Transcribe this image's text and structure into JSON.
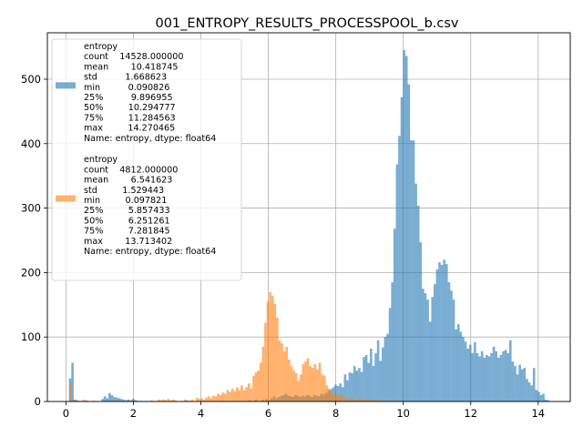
{
  "chart_data": {
    "type": "histogram",
    "title": "001_ENTROPY_RESULTS_PROCESSPOOL_b.csv",
    "xlabel": "",
    "ylabel": "",
    "xlim": [
      -0.55,
      14.95
    ],
    "ylim": [
      0,
      572
    ],
    "xticks": [
      0,
      2,
      4,
      6,
      8,
      10,
      12,
      14
    ],
    "yticks": [
      0,
      100,
      200,
      300,
      400,
      500
    ],
    "grid": true,
    "legend_position": "upper-left",
    "bin_width": 0.071,
    "series": [
      {
        "color": "#1f77b4",
        "alpha": 0.6,
        "legend_lines": [
          "entropy",
          "count    14528.000000",
          "mean        10.418745",
          "std          1.668623",
          "min          0.090826",
          "25%          9.896955",
          "50%         10.294777",
          "75%         11.284563",
          "max         14.270465",
          "Name: entropy, dtype: float64"
        ],
        "bins": [
          [
            0.09,
            36
          ],
          [
            0.16,
            60
          ],
          [
            0.23,
            3
          ],
          [
            0.3,
            2
          ],
          [
            0.38,
            1
          ],
          [
            0.45,
            1
          ],
          [
            0.6,
            1
          ],
          [
            0.8,
            1
          ],
          [
            1.05,
            4
          ],
          [
            1.12,
            8
          ],
          [
            1.19,
            5
          ],
          [
            1.26,
            13
          ],
          [
            1.33,
            10
          ],
          [
            1.4,
            7
          ],
          [
            1.47,
            6
          ],
          [
            1.54,
            5
          ],
          [
            1.61,
            4
          ],
          [
            1.68,
            3
          ],
          [
            1.75,
            2
          ],
          [
            1.82,
            3
          ],
          [
            1.89,
            2
          ],
          [
            1.96,
            4
          ],
          [
            2.03,
            2
          ],
          [
            2.1,
            1
          ],
          [
            2.2,
            1
          ],
          [
            2.35,
            1
          ],
          [
            4.6,
            1
          ],
          [
            5.4,
            2
          ],
          [
            5.6,
            3
          ],
          [
            5.8,
            3
          ],
          [
            5.9,
            4
          ],
          [
            6.0,
            3
          ],
          [
            6.07,
            5
          ],
          [
            6.14,
            8
          ],
          [
            6.21,
            5
          ],
          [
            6.28,
            7
          ],
          [
            6.35,
            9
          ],
          [
            6.42,
            10
          ],
          [
            6.49,
            12
          ],
          [
            6.56,
            9
          ],
          [
            6.63,
            8
          ],
          [
            6.7,
            7
          ],
          [
            6.77,
            10
          ],
          [
            6.84,
            9
          ],
          [
            6.91,
            7
          ],
          [
            6.98,
            9
          ],
          [
            7.05,
            8
          ],
          [
            7.12,
            10
          ],
          [
            7.19,
            9
          ],
          [
            7.26,
            7
          ],
          [
            7.33,
            10
          ],
          [
            7.4,
            9
          ],
          [
            7.47,
            8
          ],
          [
            7.54,
            12
          ],
          [
            7.61,
            11
          ],
          [
            7.68,
            13
          ],
          [
            7.75,
            17
          ],
          [
            7.82,
            19
          ],
          [
            7.89,
            22
          ],
          [
            7.96,
            26
          ],
          [
            8.03,
            24
          ],
          [
            8.1,
            28
          ],
          [
            8.17,
            22
          ],
          [
            8.24,
            42
          ],
          [
            8.31,
            33
          ],
          [
            8.38,
            45
          ],
          [
            8.45,
            44
          ],
          [
            8.52,
            55
          ],
          [
            8.59,
            48
          ],
          [
            8.66,
            52
          ],
          [
            8.73,
            46
          ],
          [
            8.8,
            69
          ],
          [
            8.87,
            72
          ],
          [
            8.94,
            60
          ],
          [
            9.01,
            82
          ],
          [
            9.08,
            55
          ],
          [
            9.15,
            75
          ],
          [
            9.22,
            95
          ],
          [
            9.29,
            63
          ],
          [
            9.36,
            84
          ],
          [
            9.43,
            100
          ],
          [
            9.5,
            105
          ],
          [
            9.57,
            145
          ],
          [
            9.64,
            185
          ],
          [
            9.71,
            268
          ],
          [
            9.78,
            368
          ],
          [
            9.85,
            412
          ],
          [
            9.92,
            472
          ],
          [
            9.99,
            545
          ],
          [
            10.06,
            536
          ],
          [
            10.13,
            492
          ],
          [
            10.2,
            405
          ],
          [
            10.27,
            405
          ],
          [
            10.34,
            338
          ],
          [
            10.41,
            304
          ],
          [
            10.48,
            247
          ],
          [
            10.55,
            175
          ],
          [
            10.62,
            168
          ],
          [
            10.69,
            158
          ],
          [
            10.76,
            124
          ],
          [
            10.83,
            162
          ],
          [
            10.9,
            182
          ],
          [
            10.97,
            205
          ],
          [
            11.04,
            216
          ],
          [
            11.11,
            212
          ],
          [
            11.18,
            220
          ],
          [
            11.25,
            213
          ],
          [
            11.32,
            185
          ],
          [
            11.39,
            172
          ],
          [
            11.46,
            158
          ],
          [
            11.53,
            112
          ],
          [
            11.6,
            120
          ],
          [
            11.67,
            108
          ],
          [
            11.74,
            100
          ],
          [
            11.81,
            93
          ],
          [
            11.88,
            82
          ],
          [
            11.95,
            88
          ],
          [
            12.02,
            75
          ],
          [
            12.09,
            92
          ],
          [
            12.16,
            75
          ],
          [
            12.23,
            70
          ],
          [
            12.3,
            78
          ],
          [
            12.37,
            68
          ],
          [
            12.44,
            72
          ],
          [
            12.51,
            70
          ],
          [
            12.58,
            75
          ],
          [
            12.65,
            85
          ],
          [
            12.72,
            78
          ],
          [
            12.79,
            68
          ],
          [
            12.86,
            72
          ],
          [
            12.93,
            78
          ],
          [
            13.0,
            80
          ],
          [
            13.07,
            75
          ],
          [
            13.14,
            95
          ],
          [
            13.21,
            62
          ],
          [
            13.28,
            55
          ],
          [
            13.35,
            42
          ],
          [
            13.42,
            57
          ],
          [
            13.49,
            50
          ],
          [
            13.56,
            52
          ],
          [
            13.63,
            35
          ],
          [
            13.7,
            30
          ],
          [
            13.77,
            25
          ],
          [
            13.84,
            52
          ],
          [
            13.91,
            18
          ],
          [
            13.98,
            15
          ],
          [
            14.05,
            10
          ],
          [
            14.12,
            12
          ],
          [
            14.19,
            3
          ],
          [
            14.26,
            2
          ]
        ]
      },
      {
        "color": "#ff7f0e",
        "alpha": 0.6,
        "legend_lines": [
          "entropy",
          "count    4812.000000",
          "mean        6.541623",
          "std         1.529443",
          "min         0.097821",
          "25%         5.857433",
          "50%         6.251261",
          "75%         7.281845",
          "max        13.713402",
          "Name: entropy, dtype: float64"
        ],
        "bins": [
          [
            0.1,
            28
          ],
          [
            0.17,
            2
          ],
          [
            0.5,
            3
          ],
          [
            0.57,
            2
          ],
          [
            1.5,
            1
          ],
          [
            1.8,
            2
          ],
          [
            2.2,
            1
          ],
          [
            2.5,
            2
          ],
          [
            2.6,
            1
          ],
          [
            2.72,
            3
          ],
          [
            2.79,
            2
          ],
          [
            2.86,
            3
          ],
          [
            2.93,
            2
          ],
          [
            3.0,
            4
          ],
          [
            3.07,
            2
          ],
          [
            3.14,
            3
          ],
          [
            3.21,
            2
          ],
          [
            3.4,
            1
          ],
          [
            3.5,
            3
          ],
          [
            3.57,
            2
          ],
          [
            3.64,
            1
          ],
          [
            3.71,
            3
          ],
          [
            3.85,
            6
          ],
          [
            3.92,
            4
          ],
          [
            3.99,
            5
          ],
          [
            4.06,
            3
          ],
          [
            4.13,
            6
          ],
          [
            4.2,
            8
          ],
          [
            4.27,
            5
          ],
          [
            4.34,
            9
          ],
          [
            4.41,
            8
          ],
          [
            4.48,
            12
          ],
          [
            4.55,
            10
          ],
          [
            4.62,
            14
          ],
          [
            4.69,
            12
          ],
          [
            4.76,
            18
          ],
          [
            4.83,
            15
          ],
          [
            4.9,
            20
          ],
          [
            4.97,
            16
          ],
          [
            5.04,
            22
          ],
          [
            5.11,
            18
          ],
          [
            5.18,
            25
          ],
          [
            5.25,
            17
          ],
          [
            5.32,
            22
          ],
          [
            5.39,
            28
          ],
          [
            5.46,
            20
          ],
          [
            5.53,
            40
          ],
          [
            5.6,
            45
          ],
          [
            5.67,
            48
          ],
          [
            5.74,
            60
          ],
          [
            5.81,
            85
          ],
          [
            5.88,
            122
          ],
          [
            5.95,
            155
          ],
          [
            6.02,
            170
          ],
          [
            6.09,
            164
          ],
          [
            6.16,
            152
          ],
          [
            6.23,
            130
          ],
          [
            6.3,
            95
          ],
          [
            6.37,
            90
          ],
          [
            6.44,
            78
          ],
          [
            6.51,
            85
          ],
          [
            6.58,
            65
          ],
          [
            6.65,
            55
          ],
          [
            6.72,
            48
          ],
          [
            6.79,
            44
          ],
          [
            6.86,
            32
          ],
          [
            6.93,
            42
          ],
          [
            7.0,
            58
          ],
          [
            7.07,
            62
          ],
          [
            7.14,
            67
          ],
          [
            7.21,
            55
          ],
          [
            7.28,
            52
          ],
          [
            7.35,
            58
          ],
          [
            7.42,
            50
          ],
          [
            7.49,
            60
          ],
          [
            7.56,
            42
          ],
          [
            7.63,
            40
          ],
          [
            7.7,
            25
          ],
          [
            7.77,
            20
          ],
          [
            7.84,
            14
          ],
          [
            7.91,
            12
          ],
          [
            7.98,
            10
          ],
          [
            8.05,
            8
          ],
          [
            8.12,
            12
          ],
          [
            8.19,
            6
          ],
          [
            8.26,
            5
          ],
          [
            8.33,
            4
          ],
          [
            8.4,
            6
          ],
          [
            8.47,
            4
          ],
          [
            8.54,
            3
          ],
          [
            8.61,
            2
          ],
          [
            8.68,
            5
          ],
          [
            8.75,
            3
          ],
          [
            8.82,
            2
          ],
          [
            8.89,
            4
          ],
          [
            8.96,
            3
          ],
          [
            9.03,
            2
          ],
          [
            9.1,
            3
          ],
          [
            9.17,
            2
          ],
          [
            9.24,
            1
          ],
          [
            9.31,
            2
          ],
          [
            9.38,
            1
          ],
          [
            9.45,
            2
          ],
          [
            9.6,
            1
          ],
          [
            9.8,
            2
          ],
          [
            10.0,
            1
          ],
          [
            10.2,
            1
          ],
          [
            10.5,
            1
          ],
          [
            11.0,
            1
          ],
          [
            11.5,
            1
          ],
          [
            12.0,
            1
          ],
          [
            12.5,
            1
          ],
          [
            13.0,
            1
          ],
          [
            13.5,
            1
          ]
        ]
      }
    ]
  }
}
